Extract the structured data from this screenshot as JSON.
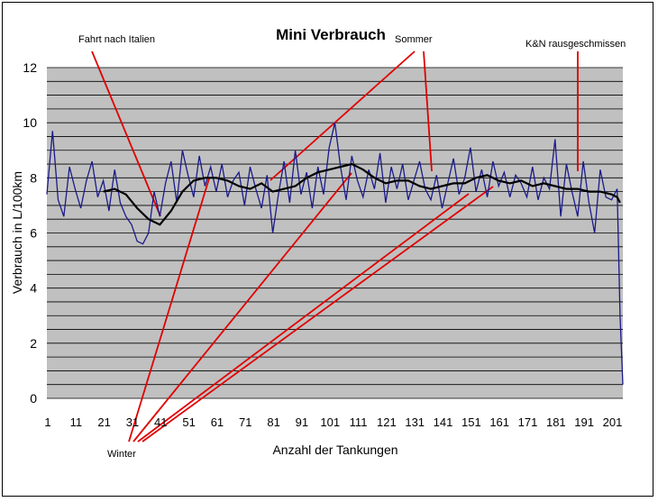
{
  "chart_data": {
    "type": "line",
    "title": "Mini Verbrauch",
    "xlabel": "Anzahl der Tankungen",
    "ylabel": "Verbrauch in L/100km",
    "ylim": [
      0,
      12
    ],
    "xlim": [
      1,
      205
    ],
    "grid": true,
    "y_ticks": [
      "0",
      "2",
      "4",
      "6",
      "8",
      "10",
      "12"
    ],
    "x_ticks": [
      "1",
      "11",
      "21",
      "31",
      "41",
      "51",
      "61",
      "71",
      "81",
      "91",
      "101",
      "111",
      "121",
      "131",
      "141",
      "151",
      "161",
      "171",
      "181",
      "191",
      "201"
    ],
    "series": [
      {
        "role": "raw",
        "color": "#1a1a8a",
        "x": [
          1,
          3,
          5,
          7,
          9,
          11,
          13,
          15,
          17,
          19,
          21,
          23,
          25,
          27,
          29,
          31,
          33,
          35,
          37,
          39,
          41,
          43,
          45,
          47,
          49,
          51,
          53,
          55,
          57,
          59,
          61,
          63,
          65,
          67,
          69,
          71,
          73,
          75,
          77,
          79,
          81,
          83,
          85,
          87,
          89,
          91,
          93,
          95,
          97,
          99,
          101,
          103,
          105,
          107,
          109,
          111,
          113,
          115,
          117,
          119,
          121,
          123,
          125,
          127,
          129,
          131,
          133,
          135,
          137,
          139,
          141,
          143,
          145,
          147,
          149,
          151,
          153,
          155,
          157,
          159,
          161,
          163,
          165,
          167,
          169,
          171,
          173,
          175,
          177,
          179,
          181,
          183,
          185,
          187,
          189,
          191,
          193,
          195,
          197,
          199,
          201,
          203,
          204,
          205
        ],
        "values": [
          7.4,
          9.7,
          7.2,
          6.6,
          8.4,
          7.6,
          6.9,
          7.9,
          8.6,
          7.3,
          7.9,
          6.8,
          8.3,
          7.1,
          6.6,
          6.3,
          5.7,
          5.6,
          6.0,
          7.5,
          6.6,
          7.8,
          8.6,
          7.1,
          9.0,
          8.1,
          7.3,
          8.8,
          7.7,
          8.4,
          7.5,
          8.5,
          7.3,
          7.9,
          8.2,
          7.0,
          8.4,
          7.6,
          6.9,
          8.1,
          6.0,
          7.4,
          8.6,
          7.1,
          9.0,
          7.4,
          8.2,
          6.9,
          8.4,
          7.4,
          9.1,
          10.0,
          8.4,
          7.2,
          8.8,
          7.9,
          7.3,
          8.3,
          7.6,
          8.9,
          7.1,
          8.4,
          7.6,
          8.5,
          7.2,
          7.9,
          8.6,
          7.6,
          7.2,
          8.1,
          6.9,
          7.8,
          8.7,
          7.4,
          8.0,
          9.1,
          7.5,
          8.3,
          7.3,
          8.6,
          7.7,
          8.2,
          7.3,
          8.1,
          7.8,
          7.3,
          8.4,
          7.2,
          8.0,
          7.6,
          9.4,
          6.6,
          8.5,
          7.5,
          6.6,
          8.6,
          7.1,
          6.0,
          8.3,
          7.3,
          7.2,
          7.6,
          3.0,
          0.5
        ]
      },
      {
        "role": "moving-average",
        "color": "#000000",
        "x": [
          21,
          25,
          29,
          33,
          37,
          41,
          45,
          49,
          53,
          57,
          61,
          65,
          69,
          73,
          77,
          81,
          85,
          89,
          93,
          97,
          101,
          105,
          109,
          113,
          117,
          121,
          125,
          129,
          133,
          137,
          141,
          145,
          149,
          153,
          157,
          161,
          165,
          169,
          173,
          177,
          181,
          185,
          189,
          193,
          197,
          201,
          203,
          204
        ],
        "values": [
          7.5,
          7.6,
          7.4,
          6.9,
          6.5,
          6.3,
          6.8,
          7.5,
          7.9,
          8.0,
          8.0,
          7.9,
          7.7,
          7.6,
          7.8,
          7.5,
          7.6,
          7.7,
          8.0,
          8.2,
          8.3,
          8.4,
          8.5,
          8.3,
          8.0,
          7.8,
          7.9,
          7.9,
          7.7,
          7.6,
          7.7,
          7.8,
          7.8,
          8.0,
          8.1,
          7.9,
          7.8,
          7.9,
          7.7,
          7.8,
          7.7,
          7.6,
          7.6,
          7.5,
          7.5,
          7.4,
          7.3,
          7.1
        ]
      }
    ],
    "annotations": [
      {
        "text": "Fahrt nach Italien",
        "color": "#e00000"
      },
      {
        "text": "Sommer",
        "color": "#e00000"
      },
      {
        "text": "K&N rausgeschmissen",
        "color": "#e00000"
      },
      {
        "text": "Winter",
        "color": "#e00000"
      }
    ]
  }
}
